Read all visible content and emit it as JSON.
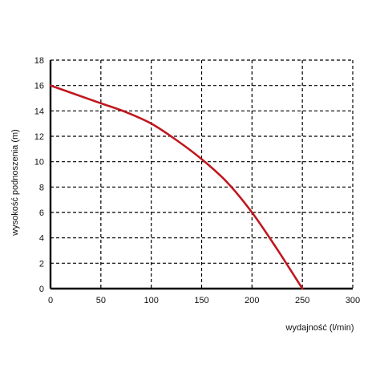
{
  "chart_data": {
    "type": "line",
    "title": "",
    "xlabel": "wydajność (l/min)",
    "ylabel": "wysokość podnoszenia (m)",
    "xlim": [
      0,
      300
    ],
    "ylim": [
      0,
      18
    ],
    "x_ticks": [
      "0",
      "50",
      "100",
      "150",
      "200",
      "250",
      "300"
    ],
    "y_ticks": [
      "0",
      "2",
      "4",
      "6",
      "8",
      "10",
      "12",
      "14",
      "16",
      "18"
    ],
    "grid": true,
    "legend": "none",
    "series": [
      {
        "color": "#c0171e",
        "x": [
          0,
          25,
          50,
          75,
          100,
          125,
          150,
          175,
          200,
          225,
          250
        ],
        "y": [
          16.0,
          15.3,
          14.6,
          13.9,
          13.0,
          11.7,
          10.2,
          8.4,
          6.0,
          3.1,
          0.0
        ]
      }
    ]
  }
}
